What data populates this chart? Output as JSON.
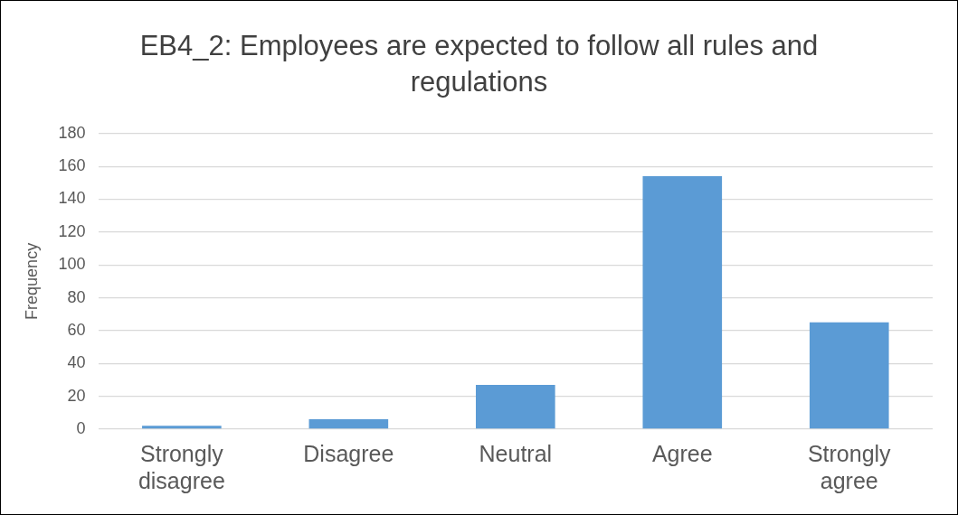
{
  "chart_data": {
    "type": "bar",
    "title": "EB4_2: Employees are expected to follow all rules and regulations",
    "ylabel": "Frequency",
    "categories": [
      "Strongly disagree",
      "Disagree",
      "Neutral",
      "Agree",
      "Strongly agree"
    ],
    "values": [
      2,
      6,
      27,
      154,
      65
    ],
    "color": "#5b9bd5",
    "ylim": [
      0,
      180
    ],
    "yticks": [
      0,
      20,
      40,
      60,
      80,
      100,
      120,
      140,
      160,
      180
    ],
    "grid": "y"
  }
}
